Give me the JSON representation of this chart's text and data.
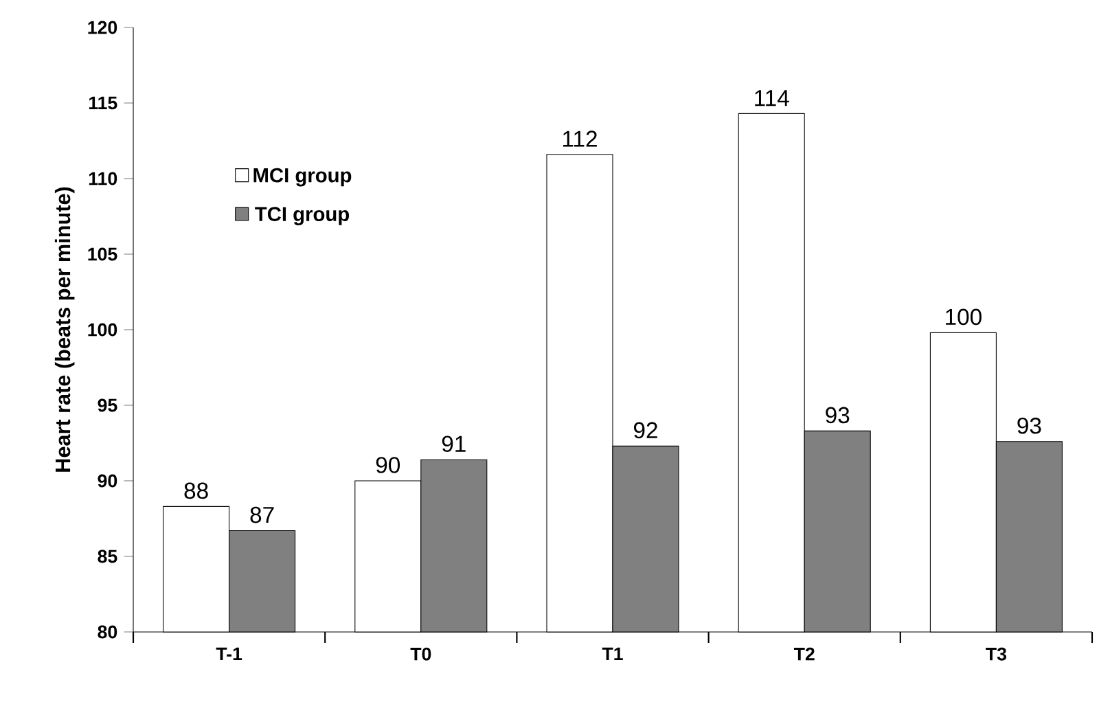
{
  "chart_data": {
    "type": "bar",
    "ylabel": "Heart rate (beats per minute)",
    "categories": [
      "T-1",
      "T0",
      "T1",
      "T2",
      "T3"
    ],
    "series": [
      {
        "name": "MCI group",
        "color": "#ffffff",
        "values": [
          88.3,
          90.0,
          111.6,
          114.3,
          99.8
        ],
        "value_labels": [
          "88",
          "90",
          "112",
          "114",
          "100"
        ]
      },
      {
        "name": "TCI group",
        "color": "#808080",
        "values": [
          86.7,
          91.4,
          92.3,
          93.3,
          92.6
        ],
        "value_labels": [
          "87",
          "91",
          "92",
          "93",
          "93"
        ]
      }
    ],
    "ylim": [
      80,
      120
    ],
    "yticks": [
      80,
      85,
      90,
      95,
      100,
      105,
      110,
      115,
      120
    ],
    "legend": "top left"
  }
}
